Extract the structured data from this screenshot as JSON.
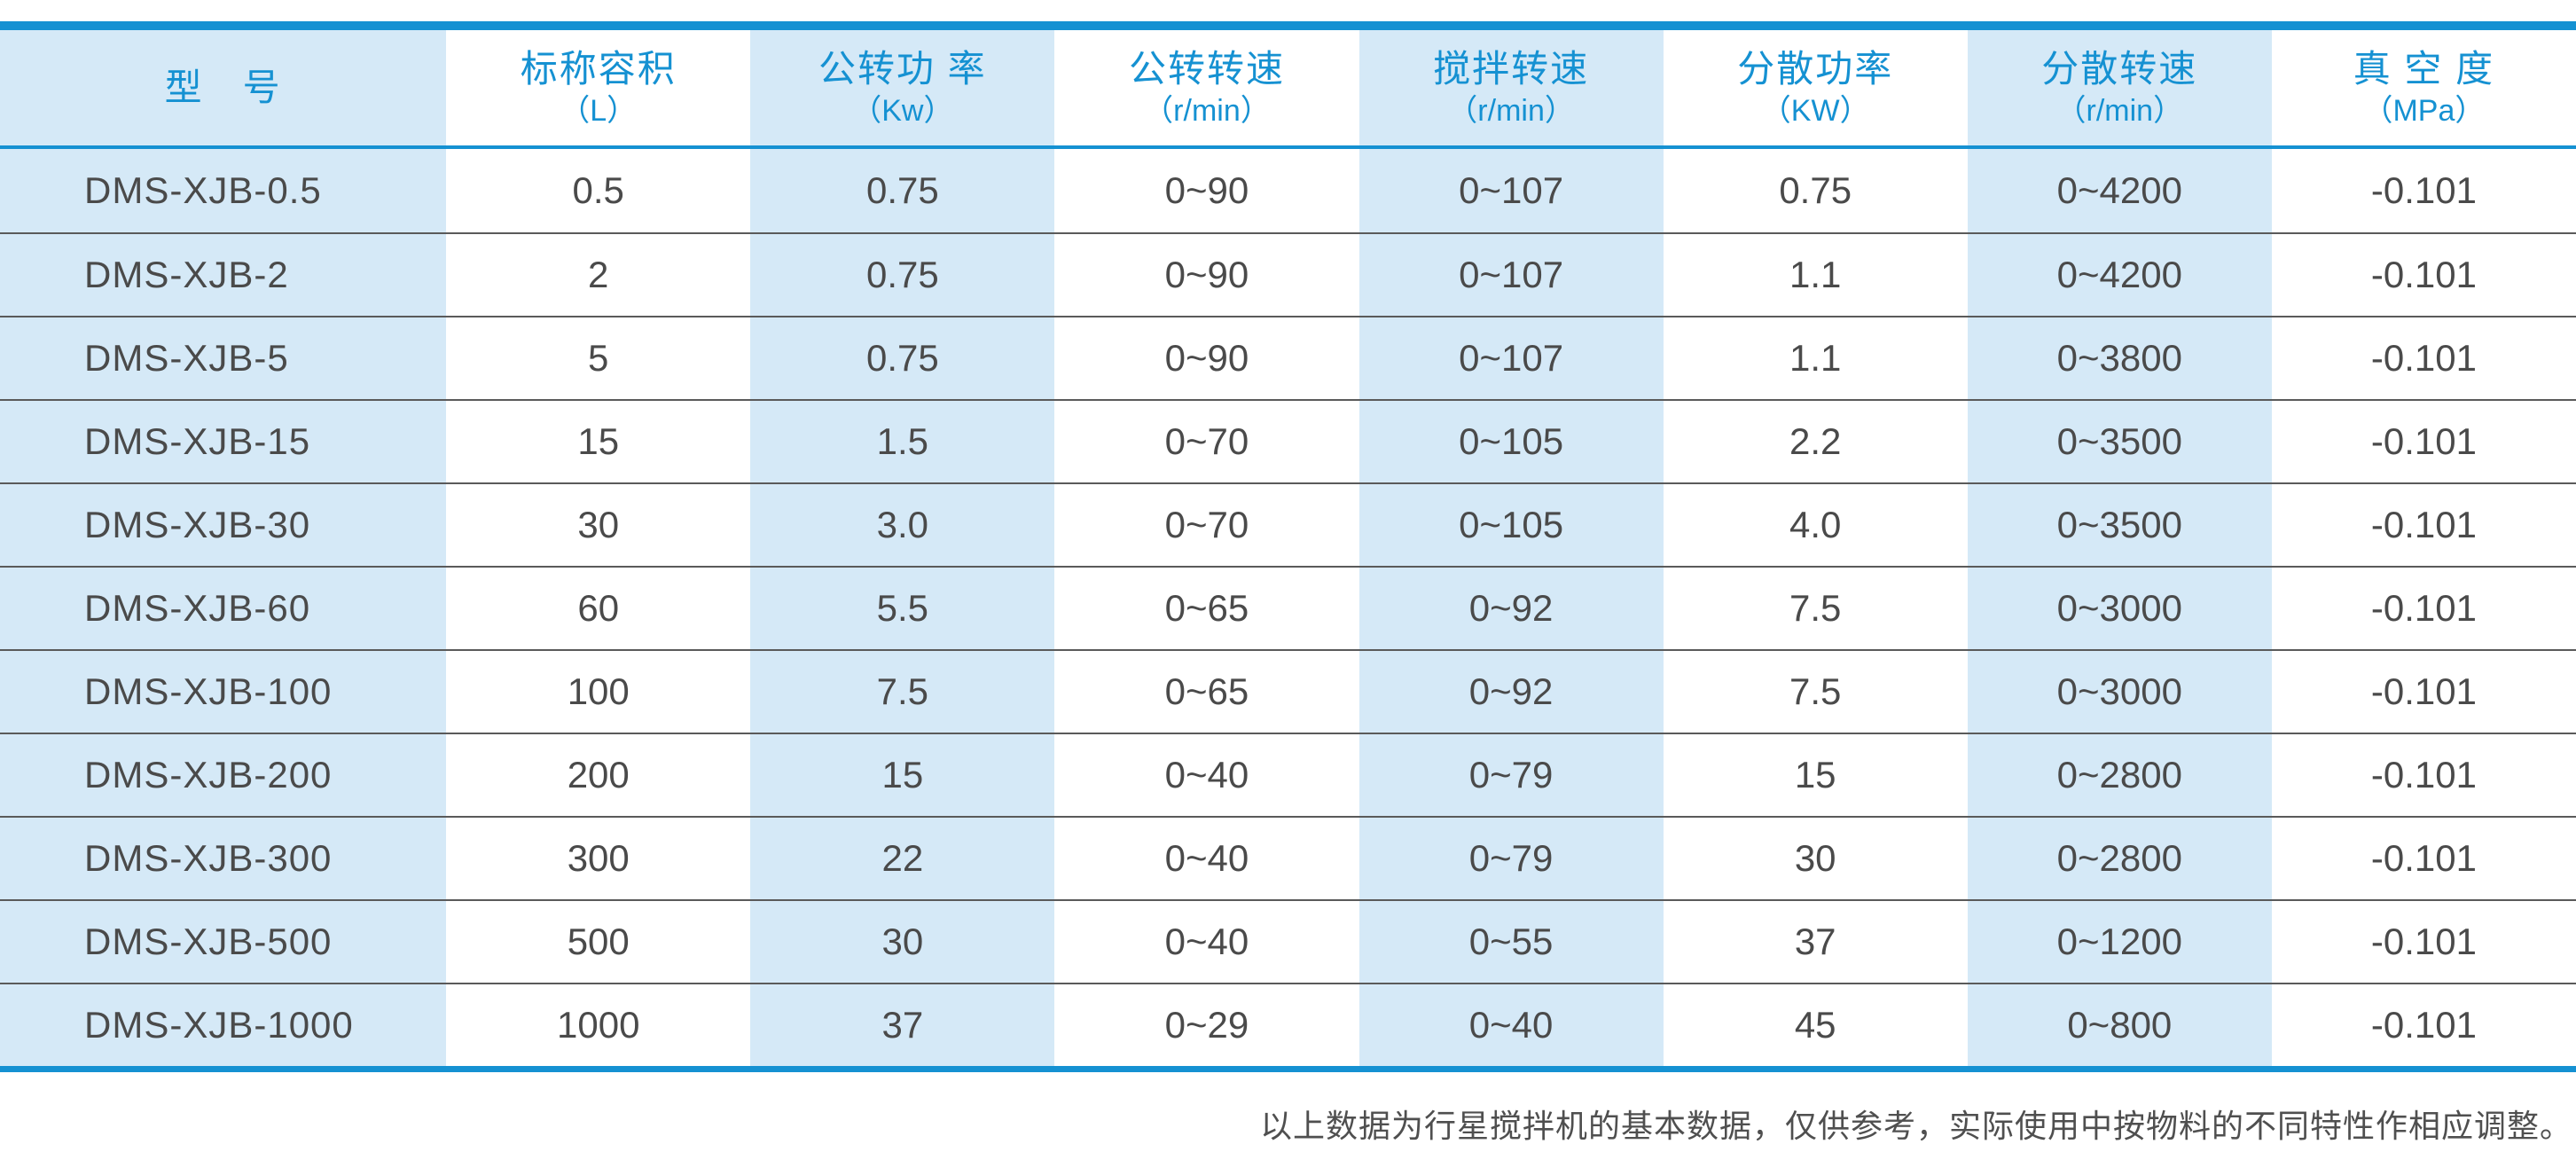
{
  "colors": {
    "accent_blue": "#1591d2",
    "light_blue": "#d5e9f7",
    "body_text": "#4a4a4a",
    "separator_gray": "#5a5a5a",
    "footnote_text": "#4f4f4f"
  },
  "table": {
    "columns": [
      {
        "title": "型　号",
        "unit": ""
      },
      {
        "title": "标称容积",
        "unit": "（L）"
      },
      {
        "title": "公转功 率",
        "unit": "（Kw）"
      },
      {
        "title": "公转转速",
        "unit": "（r/min）"
      },
      {
        "title": "搅拌转速",
        "unit": "（r/min）"
      },
      {
        "title": "分散功率",
        "unit": "（KW）"
      },
      {
        "title": "分散转速",
        "unit": "（r/min）"
      },
      {
        "title": "真 空 度",
        "unit": "（MPa）"
      }
    ],
    "rows": [
      [
        "DMS-XJB-0.5",
        "0.5",
        "0.75",
        "0~90",
        "0~107",
        "0.75",
        "0~4200",
        "-0.101"
      ],
      [
        "DMS-XJB-2",
        "2",
        "0.75",
        "0~90",
        "0~107",
        "1.1",
        "0~4200",
        "-0.101"
      ],
      [
        "DMS-XJB-5",
        "5",
        "0.75",
        "0~90",
        "0~107",
        "1.1",
        "0~3800",
        "-0.101"
      ],
      [
        "DMS-XJB-15",
        "15",
        "1.5",
        "0~70",
        "0~105",
        "2.2",
        "0~3500",
        "-0.101"
      ],
      [
        "DMS-XJB-30",
        "30",
        "3.0",
        "0~70",
        "0~105",
        "4.0",
        "0~3500",
        "-0.101"
      ],
      [
        "DMS-XJB-60",
        "60",
        "5.5",
        "0~65",
        "0~92",
        "7.5",
        "0~3000",
        "-0.101"
      ],
      [
        "DMS-XJB-100",
        "100",
        "7.5",
        "0~65",
        "0~92",
        "7.5",
        "0~3000",
        "-0.101"
      ],
      [
        "DMS-XJB-200",
        "200",
        "15",
        "0~40",
        "0~79",
        "15",
        "0~2800",
        "-0.101"
      ],
      [
        "DMS-XJB-300",
        "300",
        "22",
        "0~40",
        "0~79",
        "30",
        "0~2800",
        "-0.101"
      ],
      [
        "DMS-XJB-500",
        "500",
        "30",
        "0~40",
        "0~55",
        "37",
        "0~1200",
        "-0.101"
      ],
      [
        "DMS-XJB-1000",
        "1000",
        "37",
        "0~29",
        "0~40",
        "45",
        "0~800",
        "-0.101"
      ]
    ]
  },
  "footnote": "以上数据为行星搅拌机的基本数据，仅供参考，实际使用中按物料的不同特性作相应调整。"
}
